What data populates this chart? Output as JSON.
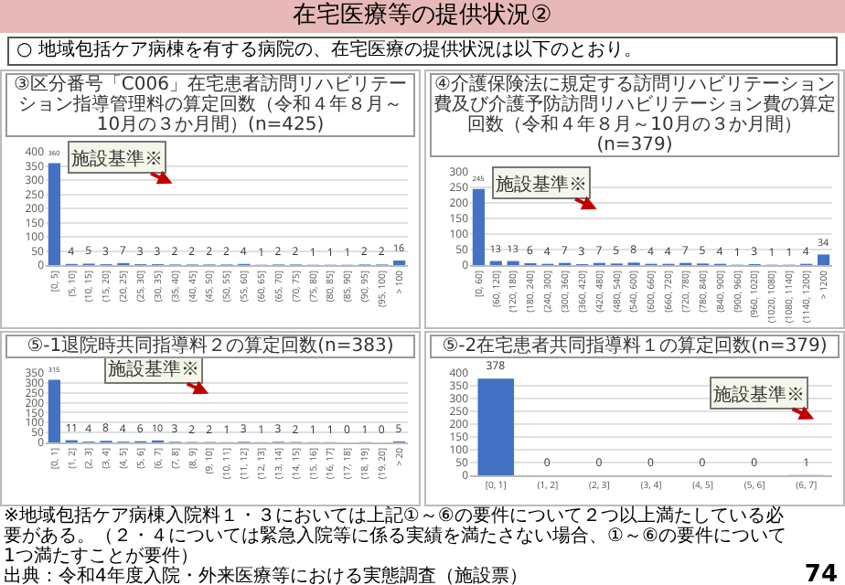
{
  "chart_data": [
    {
      "type": "other",
      "title": "在宅医療等の提供状況②",
      "subtitle": "○ 地域包括ケア病棟を有する病院の、在宅医療の提供状況は以下のとおり。"
    },
    {
      "type": "bar",
      "title": "③区分番号「C006」在宅患者訪問リハビリテーション指導管理料の算定回数（令和４年８月～10月の３か月間）(n=425)",
      "categories": [
        "[0, 5]",
        "(5, 10]",
        "(10, 15]",
        "(15, 20]",
        "(20, 25]",
        "(25, 30]",
        "(30, 35]",
        "(35, 40]",
        "(40, 45]",
        "(45, 50]",
        "(50, 55]",
        "(55, 60]",
        "(60, 65]",
        "(65, 70]",
        "(70, 75]",
        "(75, 80]",
        "(80, 85]",
        "(85, 90]",
        "(90, 95]",
        "(95, 100]",
        "> 100"
      ],
      "values": [
        360,
        4,
        5,
        3,
        7,
        3,
        3,
        2,
        2,
        2,
        2,
        4,
        1,
        2,
        2,
        1,
        1,
        1,
        2,
        2,
        16
      ],
      "color": "#4472c4",
      "ylim": [
        0,
        400
      ],
      "yticks": [
        0,
        50,
        100,
        150,
        200,
        250,
        300,
        350,
        400
      ],
      "grid": "y",
      "data_labels": true,
      "annotations": [
        "施設基準※"
      ]
    },
    {
      "type": "bar",
      "title": "④介護保険法に規定する訪問リハビリテーション費及び介護予防訪問リハビリテーション費の算定回数（令和４年８月～10月の３か月間）(n=379)",
      "categories": [
        "[0, 60]",
        "(60, 120]",
        "(120, 180]",
        "(180, 240]",
        "(240, 300]",
        "(300, 360]",
        "(360, 420]",
        "(420, 480]",
        "(480, 540]",
        "(540, 600]",
        "(600, 660]",
        "(660, 720]",
        "(720, 780]",
        "(780, 840]",
        "(840, 900]",
        "(900, 960]",
        "(960, 1020]",
        "(1020, 1080]",
        "(1080, 1140]",
        "(1140, 1200]",
        "> 1200"
      ],
      "values": [
        245,
        13,
        13,
        6,
        4,
        7,
        3,
        7,
        5,
        8,
        4,
        4,
        7,
        5,
        4,
        1,
        3,
        1,
        1,
        4,
        34
      ],
      "color": "#4472c4",
      "ylim": [
        0,
        300
      ],
      "yticks": [
        0,
        50,
        100,
        150,
        200,
        250,
        300
      ],
      "grid": "y",
      "data_labels": true,
      "annotations": [
        "施設基準※"
      ]
    },
    {
      "type": "bar",
      "title": "⑤-1退院時共同指導料２の算定回数(n=383)",
      "categories": [
        "[0, 1]",
        "(1, 2]",
        "(2, 3]",
        "(3, 4]",
        "(4, 5]",
        "(5, 6]",
        "(6, 7]",
        "(7, 8]",
        "(8, 9]",
        "(9, 10]",
        "(10, 11]",
        "(11, 12]",
        "(12, 13]",
        "(13, 14]",
        "(14, 15]",
        "(15, 16]",
        "(16, 17]",
        "(17, 18]",
        "(18, 19]",
        "(19, 20]",
        "> 20"
      ],
      "values": [
        315,
        11,
        4,
        8,
        4,
        6,
        10,
        3,
        2,
        2,
        1,
        3,
        1,
        3,
        2,
        1,
        1,
        0,
        1,
        0,
        5
      ],
      "color": "#4472c4",
      "ylim": [
        0,
        350
      ],
      "yticks": [
        0,
        50,
        100,
        150,
        200,
        250,
        300,
        350
      ],
      "grid": "y",
      "data_labels": true,
      "annotations": [
        "施設基準※"
      ]
    },
    {
      "type": "bar",
      "title": "⑤-2在宅患者共同指導料１の算定回数(n=379)",
      "categories": [
        "[0, 1]",
        "(1, 2]",
        "(2, 3]",
        "(3, 4]",
        "(4, 5]",
        "(5, 6]",
        "(6, 7]"
      ],
      "values": [
        378,
        0,
        0,
        0,
        0,
        0,
        1
      ],
      "color": "#4472c4",
      "ylim": [
        0,
        400
      ],
      "yticks": [
        0,
        50,
        100,
        150,
        200,
        250,
        300,
        350,
        400
      ],
      "grid": "y",
      "data_labels": true,
      "annotations": [
        "施設基準※"
      ]
    },
    {
      "type": "other",
      "annotations": [
        "※地域包括ケア病棟入院料１・３においては上記①～⑥の要件について２つ以上満たしている必要がある。（２・４については緊急入院等に係る実績を満たさない場合、①～⑥の要件について1つ満たすことが要件）",
        "出典：令和4年度入院・外来医療等における実態調査（施設票）",
        "74"
      ]
    }
  ]
}
